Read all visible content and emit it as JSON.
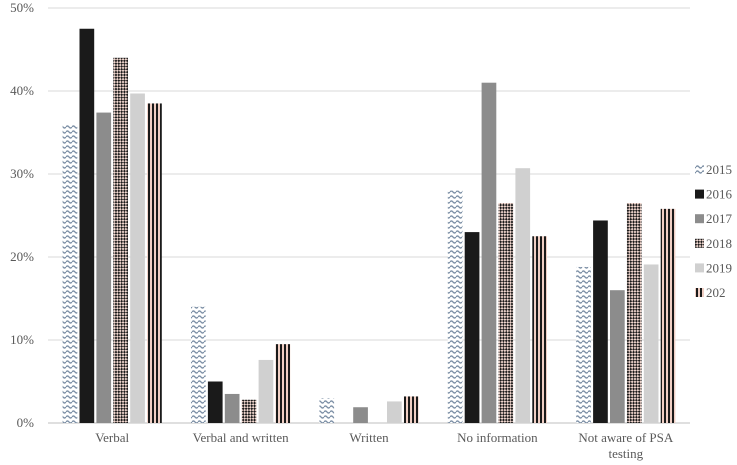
{
  "chart_data": {
    "type": "bar",
    "title": "",
    "xlabel": "",
    "ylabel": "",
    "ylim": [
      0,
      50
    ],
    "yticks": [
      "0%",
      "10%",
      "20%",
      "30%",
      "40%",
      "50%"
    ],
    "grid": true,
    "legend_position": "right",
    "categories": [
      [
        "Verbal"
      ],
      [
        "Verbal and written"
      ],
      [
        "Written"
      ],
      [
        "No information"
      ],
      [
        "Not aware of PSA",
        "testing"
      ]
    ],
    "series": [
      {
        "name": "2015",
        "color": "#8fa0b4",
        "pattern": "wave",
        "values": [
          36,
          14,
          3,
          28,
          18.8
        ]
      },
      {
        "name": "2016",
        "color": "#1a1a1a",
        "pattern": "solid",
        "values": [
          47.5,
          5,
          0,
          23,
          24.4
        ]
      },
      {
        "name": "2017",
        "color": "#8c8c8c",
        "pattern": "solid",
        "values": [
          37.4,
          3.5,
          1.9,
          41,
          16
        ]
      },
      {
        "name": "2018",
        "color": "#2b2b2b",
        "pattern": "checker",
        "values": [
          44,
          2.8,
          0,
          26.5,
          26.5
        ]
      },
      {
        "name": "2019",
        "color": "#d0d0d0",
        "pattern": "solid",
        "values": [
          39.7,
          7.6,
          2.6,
          30.7,
          19.1
        ]
      },
      {
        "name": "202",
        "color": "#222222",
        "pattern": "vstripe",
        "values": [
          38.5,
          9.5,
          3.2,
          22.5,
          25.8
        ]
      }
    ]
  }
}
